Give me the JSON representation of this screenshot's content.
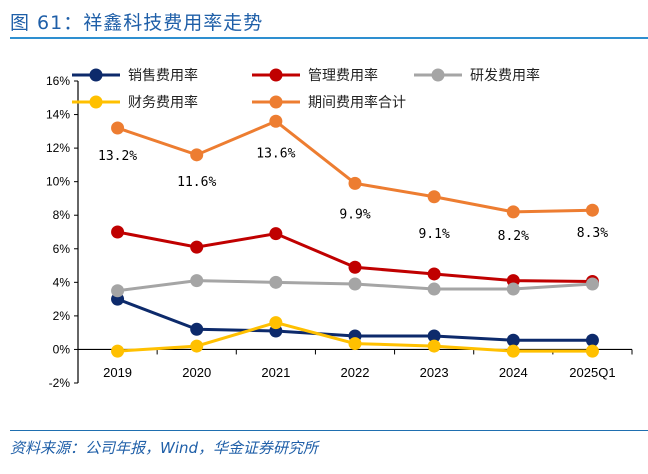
{
  "title": "图 61：祥鑫科技费用率走势",
  "source": "资料来源：公司年报，Wind，华金证券研究所",
  "chart_data": {
    "type": "line",
    "categories": [
      "2019",
      "2020",
      "2021",
      "2022",
      "2023",
      "2024",
      "2025Q1"
    ],
    "ylim": [
      -2,
      16
    ],
    "yticks": [
      "-2%",
      "0%",
      "2%",
      "4%",
      "6%",
      "8%",
      "10%",
      "12%",
      "14%",
      "16%"
    ],
    "legend_position": "top",
    "grid": false,
    "series": [
      {
        "name": "销售费用率",
        "color": "#0d2a6b",
        "values": [
          3.0,
          1.2,
          1.1,
          0.8,
          0.8,
          0.55,
          0.55
        ]
      },
      {
        "name": "管理费用率",
        "color": "#c00000",
        "values": [
          7.0,
          6.1,
          6.9,
          4.9,
          4.5,
          4.1,
          4.05
        ]
      },
      {
        "name": "研发费用率",
        "color": "#a5a5a5",
        "values": [
          3.5,
          4.1,
          4.0,
          3.9,
          3.6,
          3.6,
          3.9
        ]
      },
      {
        "name": "财务费用率",
        "color": "#ffc000",
        "values": [
          -0.1,
          0.2,
          1.6,
          0.35,
          0.2,
          -0.1,
          -0.1
        ]
      },
      {
        "name": "期间费用率合计",
        "color": "#ed7d31",
        "values": [
          13.2,
          11.6,
          13.6,
          9.9,
          9.1,
          8.2,
          8.3
        ],
        "data_labels": [
          "13.2%",
          "11.6%",
          "13.6%",
          "9.9%",
          "9.1%",
          "8.2%",
          "8.3%"
        ]
      }
    ]
  }
}
